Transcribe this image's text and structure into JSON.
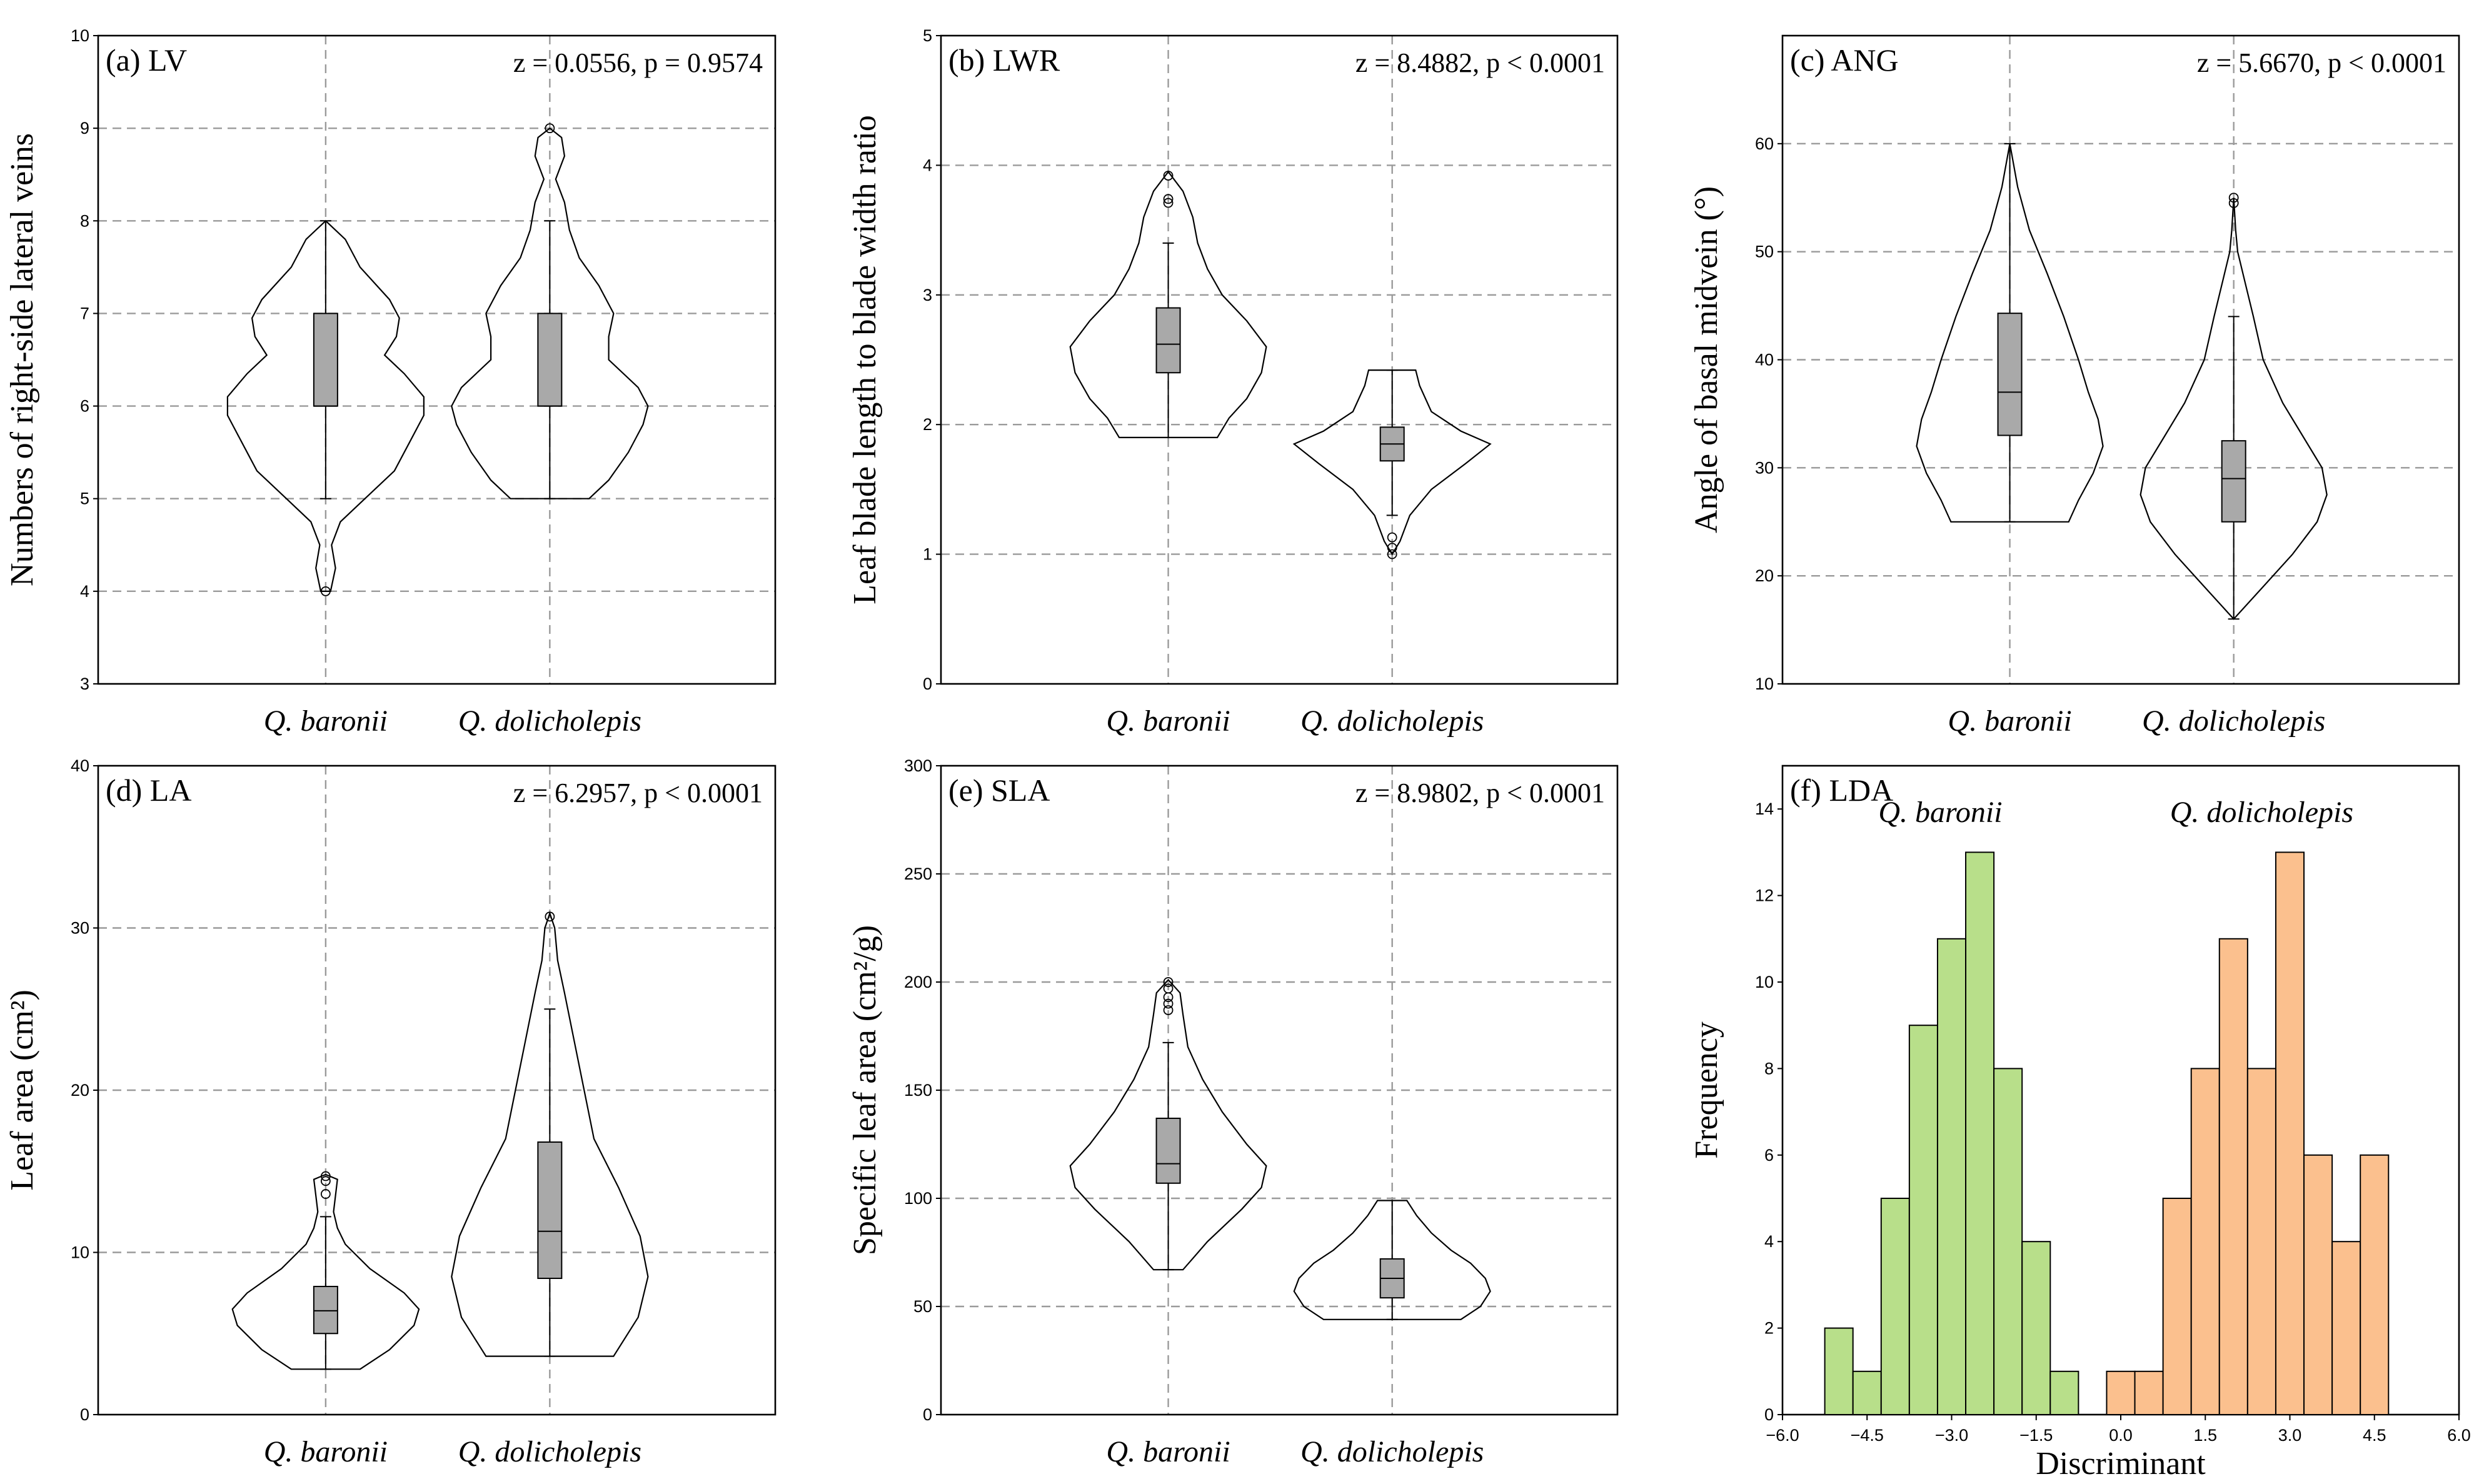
{
  "chart_data": [
    {
      "type": "violin",
      "panel_title": "(a) LV",
      "stat": "z = 0.0556, p = 0.9574",
      "ylabel": "Numbers of right-side lateral veins",
      "ylim": [
        3,
        10
      ],
      "yticks": [
        3,
        4,
        5,
        6,
        7,
        8,
        9,
        10
      ],
      "categories": [
        "Q. baronii",
        "Q. dolicholepis"
      ],
      "groups": [
        {
          "min": 5,
          "q1": 6,
          "median": 6,
          "q3": 7,
          "max": 8,
          "outliers": [
            4
          ],
          "density": [
            [
              4,
              0.05
            ],
            [
              4.25,
              0.1
            ],
            [
              4.5,
              0.06
            ],
            [
              4.75,
              0.15
            ],
            [
              5,
              0.4
            ],
            [
              5.3,
              0.7
            ],
            [
              5.6,
              0.85
            ],
            [
              5.9,
              1.0
            ],
            [
              6.1,
              1.0
            ],
            [
              6.35,
              0.8
            ],
            [
              6.55,
              0.6
            ],
            [
              6.75,
              0.72
            ],
            [
              6.95,
              0.75
            ],
            [
              7.15,
              0.65
            ],
            [
              7.5,
              0.35
            ],
            [
              7.8,
              0.2
            ],
            [
              8,
              0.0
            ]
          ]
        },
        {
          "min": 5,
          "q1": 6,
          "median": 6,
          "q3": 7,
          "max": 8,
          "outliers": [
            9
          ],
          "density": [
            [
              5,
              0.4
            ],
            [
              5.2,
              0.6
            ],
            [
              5.5,
              0.8
            ],
            [
              5.8,
              0.95
            ],
            [
              6,
              1.0
            ],
            [
              6.2,
              0.9
            ],
            [
              6.5,
              0.6
            ],
            [
              6.75,
              0.6
            ],
            [
              7,
              0.65
            ],
            [
              7.3,
              0.5
            ],
            [
              7.6,
              0.3
            ],
            [
              7.9,
              0.2
            ],
            [
              8.2,
              0.15
            ],
            [
              8.45,
              0.06
            ],
            [
              8.7,
              0.15
            ],
            [
              8.9,
              0.12
            ],
            [
              9,
              0.0
            ]
          ]
        }
      ]
    },
    {
      "type": "violin",
      "panel_title": "(b) LWR",
      "stat": "z = 8.4882, p < 0.0001",
      "ylabel": "Leaf blade length to blade width ratio",
      "ylim": [
        0,
        5
      ],
      "yticks": [
        0,
        1,
        2,
        3,
        4,
        5
      ],
      "categories": [
        "Q. baronii",
        "Q. dolicholepis"
      ],
      "groups": [
        {
          "min": 1.9,
          "q1": 2.4,
          "median": 2.62,
          "q3": 2.9,
          "max": 3.4,
          "outliers": [
            3.71,
            3.74,
            3.92
          ],
          "density": [
            [
              1.9,
              0.5
            ],
            [
              2.05,
              0.62
            ],
            [
              2.2,
              0.8
            ],
            [
              2.4,
              0.95
            ],
            [
              2.6,
              1.0
            ],
            [
              2.8,
              0.8
            ],
            [
              3.0,
              0.55
            ],
            [
              3.2,
              0.4
            ],
            [
              3.4,
              0.3
            ],
            [
              3.6,
              0.25
            ],
            [
              3.8,
              0.15
            ],
            [
              3.95,
              0.0
            ]
          ]
        },
        {
          "min": 1.3,
          "q1": 1.72,
          "median": 1.85,
          "q3": 1.98,
          "max": 2.42,
          "outliers": [
            1.0,
            1.05,
            1.13
          ],
          "density": [
            [
              1.0,
              0.0
            ],
            [
              1.1,
              0.08
            ],
            [
              1.3,
              0.18
            ],
            [
              1.5,
              0.4
            ],
            [
              1.7,
              0.75
            ],
            [
              1.85,
              1.0
            ],
            [
              1.95,
              0.7
            ],
            [
              2.1,
              0.4
            ],
            [
              2.3,
              0.28
            ],
            [
              2.42,
              0.24
            ]
          ]
        }
      ]
    },
    {
      "type": "violin",
      "panel_title": "(c) ANG",
      "stat": "z = 5.6670, p < 0.0001",
      "ylabel": "Angle of basal midvein (°)",
      "ylim": [
        10,
        70
      ],
      "yticks": [
        10,
        20,
        30,
        40,
        50,
        60
      ],
      "categories": [
        "Q. baronii",
        "Q. dolicholepis"
      ],
      "groups": [
        {
          "min": 25,
          "q1": 33,
          "median": 37,
          "q3": 44.3,
          "max": 60,
          "outliers": [],
          "density": [
            [
              25,
              0.6
            ],
            [
              27,
              0.7
            ],
            [
              29.5,
              0.85
            ],
            [
              32,
              0.95
            ],
            [
              34.5,
              0.9
            ],
            [
              37,
              0.8
            ],
            [
              40,
              0.7
            ],
            [
              44,
              0.55
            ],
            [
              48,
              0.38
            ],
            [
              52,
              0.2
            ],
            [
              56,
              0.08
            ],
            [
              60,
              0.0
            ]
          ]
        },
        {
          "min": 16,
          "q1": 25,
          "median": 29,
          "q3": 32.5,
          "max": 44,
          "outliers": [
            54.5,
            55
          ],
          "density": [
            [
              16,
              0.0
            ],
            [
              19,
              0.3
            ],
            [
              22,
              0.6
            ],
            [
              25,
              0.85
            ],
            [
              27.5,
              0.95
            ],
            [
              30,
              0.9
            ],
            [
              33,
              0.7
            ],
            [
              36,
              0.5
            ],
            [
              40,
              0.3
            ],
            [
              44,
              0.2
            ],
            [
              47,
              0.12
            ],
            [
              50,
              0.04
            ],
            [
              52,
              0.02
            ],
            [
              55,
              0.0
            ]
          ]
        }
      ]
    },
    {
      "type": "violin",
      "panel_title": "(d) LA",
      "stat": "z = 6.2957, p < 0.0001",
      "ylabel": "Leaf area (cm²)",
      "ylim": [
        0,
        40
      ],
      "yticks": [
        0,
        10,
        20,
        30,
        40
      ],
      "categories": [
        "Q. baronii",
        "Q. dolicholepis"
      ],
      "groups": [
        {
          "min": 2.8,
          "q1": 5,
          "median": 6.4,
          "q3": 7.9,
          "max": 12.2,
          "outliers": [
            13.6,
            14.4,
            14.7
          ],
          "density": [
            [
              2.8,
              0.35
            ],
            [
              4,
              0.65
            ],
            [
              5.5,
              0.9
            ],
            [
              6.5,
              0.95
            ],
            [
              7.5,
              0.8
            ],
            [
              9,
              0.45
            ],
            [
              10.5,
              0.2
            ],
            [
              11.5,
              0.12
            ],
            [
              12.5,
              0.08
            ],
            [
              13.5,
              0.1
            ],
            [
              14.5,
              0.12
            ],
            [
              14.8,
              0.0
            ]
          ]
        },
        {
          "min": 3.6,
          "q1": 8.4,
          "median": 11.3,
          "q3": 16.8,
          "max": 25,
          "outliers": [
            30.7
          ],
          "density": [
            [
              3.6,
              0.65
            ],
            [
              6,
              0.9
            ],
            [
              8.5,
              1.0
            ],
            [
              11,
              0.92
            ],
            [
              14,
              0.7
            ],
            [
              17,
              0.45
            ],
            [
              20,
              0.35
            ],
            [
              23,
              0.25
            ],
            [
              26,
              0.15
            ],
            [
              28,
              0.08
            ],
            [
              30,
              0.05
            ],
            [
              30.9,
              0.0
            ]
          ]
        }
      ]
    },
    {
      "type": "violin",
      "panel_title": "(e) SLA",
      "stat": "z = 8.9802, p < 0.0001",
      "ylabel": "Specific leaf area (cm²/g)",
      "ylim": [
        0,
        300
      ],
      "yticks": [
        0,
        50,
        100,
        150,
        200,
        250,
        300
      ],
      "categories": [
        "Q. baronii",
        "Q. dolicholepis"
      ],
      "groups": [
        {
          "min": 67,
          "q1": 107,
          "median": 116,
          "q3": 137,
          "max": 172,
          "outliers": [
            187,
            190,
            193,
            197,
            200
          ],
          "density": [
            [
              67,
              0.15
            ],
            [
              80,
              0.4
            ],
            [
              95,
              0.75
            ],
            [
              105,
              0.95
            ],
            [
              115,
              1.0
            ],
            [
              125,
              0.8
            ],
            [
              140,
              0.55
            ],
            [
              155,
              0.35
            ],
            [
              170,
              0.2
            ],
            [
              185,
              0.15
            ],
            [
              195,
              0.12
            ],
            [
              201,
              0.0
            ]
          ]
        },
        {
          "min": 44,
          "q1": 54,
          "median": 63,
          "q3": 72,
          "max": 99,
          "outliers": [],
          "density": [
            [
              44,
              0.7
            ],
            [
              50,
              0.9
            ],
            [
              57,
              1.0
            ],
            [
              63,
              0.95
            ],
            [
              70,
              0.8
            ],
            [
              76,
              0.6
            ],
            [
              84,
              0.4
            ],
            [
              92,
              0.25
            ],
            [
              99,
              0.15
            ]
          ]
        }
      ]
    },
    {
      "type": "histogram",
      "panel_title": "(f) LDA",
      "xlabel": "Discriminant",
      "ylabel": "Frequency",
      "xlim": [
        -6,
        6
      ],
      "ylim": [
        0,
        15
      ],
      "xticks": [
        -6.0,
        -4.5,
        -3.0,
        -1.5,
        0.0,
        1.5,
        3.0,
        4.5,
        6.0
      ],
      "yticks": [
        0,
        2,
        4,
        6,
        8,
        10,
        12,
        14
      ],
      "bin_width": 0.5,
      "series": [
        {
          "name": "Q. baronii",
          "color": "#b8df8a",
          "bin_starts": [
            -5.25,
            -4.75,
            -4.25,
            -3.75,
            -3.25,
            -2.75,
            -2.25,
            -1.75,
            -1.25
          ],
          "counts": [
            2,
            1,
            5,
            9,
            11,
            13,
            8,
            4,
            1
          ]
        },
        {
          "name": "Q. dolicholepis",
          "color": "#fbc08e",
          "bin_starts": [
            -0.25,
            0.25,
            0.75,
            1.25,
            1.75,
            2.25,
            2.75,
            3.25,
            3.75,
            4.25
          ],
          "counts": [
            1,
            1,
            5,
            8,
            11,
            8,
            13,
            6,
            4,
            6
          ]
        }
      ]
    }
  ],
  "style": {
    "box_fill": "#a9a9a9",
    "grid_color": "#9a9a9a"
  }
}
